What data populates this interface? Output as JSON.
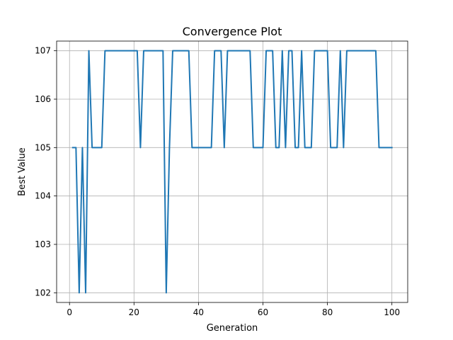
{
  "chart_data": {
    "type": "line",
    "title": "Convergence Plot",
    "xlabel": "Generation",
    "ylabel": "Best Value",
    "xlim": [
      -4.0,
      104.9
    ],
    "ylim": [
      101.8,
      107.2
    ],
    "xticks": [
      0,
      20,
      40,
      60,
      80,
      100
    ],
    "xtick_labels": [
      "0",
      "20",
      "40",
      "60",
      "80",
      "100"
    ],
    "yticks": [
      102,
      103,
      104,
      105,
      106,
      107
    ],
    "ytick_labels": [
      "102",
      "103",
      "104",
      "105",
      "106",
      "107"
    ],
    "grid": true,
    "line_color": "#1f77b4",
    "series": [
      {
        "x": [
          1,
          2,
          3,
          4,
          5,
          6,
          7,
          8,
          9,
          10,
          11,
          12,
          13,
          14,
          15,
          16,
          17,
          18,
          19,
          20,
          21,
          22,
          23,
          24,
          25,
          26,
          27,
          28,
          29,
          30,
          31,
          32,
          33,
          34,
          35,
          36,
          37,
          38,
          39,
          40,
          41,
          42,
          43,
          44,
          45,
          46,
          47,
          48,
          49,
          50,
          51,
          52,
          53,
          54,
          55,
          56,
          57,
          58,
          59,
          60,
          61,
          62,
          63,
          64,
          65,
          66,
          67,
          68,
          69,
          70,
          71,
          72,
          73,
          74,
          75,
          76,
          77,
          78,
          79,
          80,
          81,
          82,
          83,
          84,
          85,
          86,
          87,
          88,
          89,
          90,
          91,
          92,
          93,
          94,
          95,
          96,
          97,
          98,
          99,
          100
        ],
        "y": [
          105,
          105,
          102,
          105,
          102,
          107,
          105,
          105,
          105,
          105,
          107,
          107,
          107,
          107,
          107,
          107,
          107,
          107,
          107,
          107,
          107,
          105,
          107,
          107,
          107,
          107,
          107,
          107,
          107,
          102,
          105,
          107,
          107,
          107,
          107,
          107,
          107,
          105,
          105,
          105,
          105,
          105,
          105,
          105,
          107,
          107,
          107,
          105,
          107,
          107,
          107,
          107,
          107,
          107,
          107,
          107,
          105,
          105,
          105,
          105,
          107,
          107,
          107,
          105,
          105,
          107,
          105,
          107,
          107,
          105,
          105,
          107,
          105,
          105,
          105,
          107,
          107,
          107,
          107,
          107,
          105,
          105,
          105,
          107,
          105,
          107,
          107,
          107,
          107,
          107,
          107,
          107,
          107,
          107,
          107,
          105,
          105,
          105,
          105,
          105
        ]
      }
    ]
  }
}
